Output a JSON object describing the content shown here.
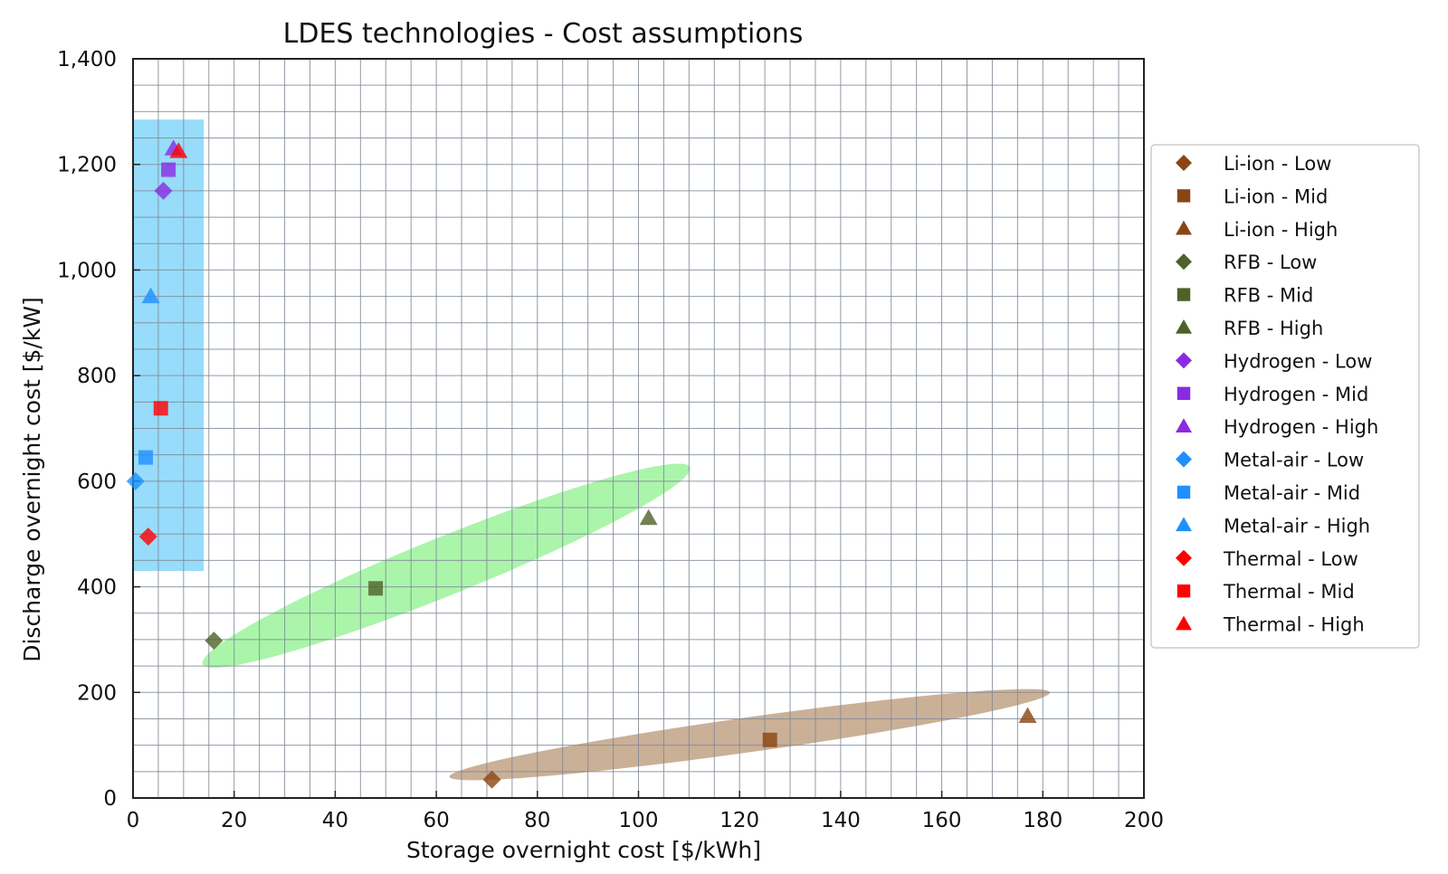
{
  "chart_data": {
    "type": "scatter",
    "title": "LDES technologies - Cost assumptions",
    "xlabel": "Storage overnight cost [$/kWh]",
    "ylabel": "Discharge overnight cost [$/kW]",
    "xlim": [
      0,
      200
    ],
    "ylim": [
      0,
      1400
    ],
    "x_ticks": [
      0,
      20,
      40,
      60,
      80,
      100,
      120,
      140,
      160,
      180,
      200
    ],
    "y_ticks": [
      0,
      200,
      400,
      600,
      800,
      1000,
      1200,
      1400
    ],
    "x_tick_labels": [
      "0",
      "20",
      "40",
      "60",
      "80",
      "100",
      "120",
      "140",
      "160",
      "180",
      "200"
    ],
    "y_tick_labels": [
      "0",
      "200",
      "400",
      "600",
      "800",
      "1,000",
      "1,200",
      "1,400"
    ],
    "grid": true,
    "legend_position": "right",
    "series": [
      {
        "name": "Li-ion - Low",
        "marker": "diamond",
        "color": "#8B4513",
        "points": [
          [
            71,
            35
          ]
        ]
      },
      {
        "name": "Li-ion - Mid",
        "marker": "square",
        "color": "#8B4513",
        "points": [
          [
            126,
            110
          ]
        ]
      },
      {
        "name": "Li-ion - High",
        "marker": "triangle",
        "color": "#8B4513",
        "points": [
          [
            177,
            155
          ]
        ]
      },
      {
        "name": "RFB - Low",
        "marker": "diamond",
        "color": "#4F6228",
        "points": [
          [
            16,
            298
          ]
        ]
      },
      {
        "name": "RFB - Mid",
        "marker": "square",
        "color": "#4F6228",
        "points": [
          [
            48,
            397
          ]
        ]
      },
      {
        "name": "RFB - High",
        "marker": "triangle",
        "color": "#4F6228",
        "points": [
          [
            102,
            530
          ]
        ]
      },
      {
        "name": "Hydrogen - Low",
        "marker": "diamond",
        "color": "#8A2BE2",
        "points": [
          [
            6,
            1150
          ]
        ]
      },
      {
        "name": "Hydrogen - Mid",
        "marker": "square",
        "color": "#8A2BE2",
        "points": [
          [
            7,
            1190
          ]
        ]
      },
      {
        "name": "Hydrogen - High",
        "marker": "triangle",
        "color": "#8A2BE2",
        "points": [
          [
            8,
            1230
          ]
        ]
      },
      {
        "name": "Metal-air - Low",
        "marker": "diamond",
        "color": "#1E90FF",
        "points": [
          [
            0.5,
            600
          ]
        ]
      },
      {
        "name": "Metal-air - Mid",
        "marker": "square",
        "color": "#1E90FF",
        "points": [
          [
            2.5,
            645
          ]
        ]
      },
      {
        "name": "Metal-air - High",
        "marker": "triangle",
        "color": "#1E90FF",
        "points": [
          [
            3.5,
            950
          ]
        ]
      },
      {
        "name": "Thermal - Low",
        "marker": "diamond",
        "color": "#FF0000",
        "points": [
          [
            3,
            495
          ]
        ]
      },
      {
        "name": "Thermal - Mid",
        "marker": "square",
        "color": "#FF0000",
        "points": [
          [
            5.5,
            738
          ]
        ]
      },
      {
        "name": "Thermal - High",
        "marker": "triangle",
        "color": "#FF0000",
        "points": [
          [
            9,
            1225
          ]
        ]
      }
    ],
    "regions": [
      {
        "name": "long-duration-region",
        "shape": "rect",
        "color": "#41C0F6",
        "x_range": [
          0,
          14
        ],
        "y_range": [
          430,
          1285
        ]
      },
      {
        "name": "rfb-ellipse",
        "shape": "ellipse",
        "color": "#7CF07C",
        "center": [
          62,
          440
        ],
        "radius_x": 52,
        "radius_y": 100,
        "angle": -22
      },
      {
        "name": "li-ion-ellipse",
        "shape": "ellipse",
        "color": "#A67C52",
        "center": [
          122,
          120
        ],
        "radius_x": 60,
        "radius_y": 60,
        "angle": -8
      }
    ]
  }
}
